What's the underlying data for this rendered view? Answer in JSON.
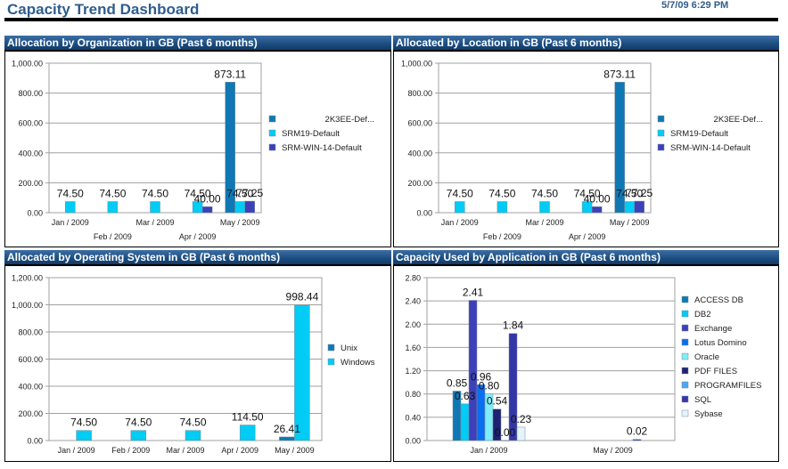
{
  "header": {
    "title": "Capacity Trend Dashboard",
    "datetime": "5/7/09 6:29 PM"
  },
  "chart_data": [
    {
      "id": "org",
      "type": "bar",
      "title": "Allocation by Organization in GB (Past 6 months)",
      "xlabel": "",
      "ylabel": "",
      "ylim": [
        0,
        1000
      ],
      "yticks": [
        "0.00",
        "200.00",
        "400.00",
        "600.00",
        "800.00",
        "1,000.00"
      ],
      "ytick_values": [
        0,
        200,
        400,
        600,
        800,
        1000
      ],
      "categories": [
        "Jan / 2009",
        "Feb / 2009",
        "Mar / 2009",
        "Apr / 2009",
        "May / 2009"
      ],
      "legend_position": "right",
      "grid": true,
      "series": [
        {
          "name": "2K3EE-Def...",
          "color": "#0f78b4",
          "values": [
            null,
            null,
            null,
            null,
            873.11
          ],
          "labels": [
            "",
            "",
            "",
            "",
            "873.11"
          ]
        },
        {
          "name": "SRM19-Default",
          "color": "#00ccf5",
          "values": [
            74.5,
            74.5,
            74.5,
            74.5,
            74.5
          ],
          "labels": [
            "74.50",
            "74.50",
            "74.50",
            "74.50",
            "74.50"
          ]
        },
        {
          "name": "SRM-WIN-14-Default",
          "color": "#3d40b8",
          "values": [
            null,
            null,
            null,
            40.0,
            77.25
          ],
          "labels": [
            "",
            "",
            "",
            "40.00",
            "77.25"
          ]
        }
      ]
    },
    {
      "id": "loc",
      "type": "bar",
      "title": "Allocated by Location in GB (Past 6 months)",
      "xlabel": "",
      "ylabel": "",
      "ylim": [
        0,
        1000
      ],
      "yticks": [
        "0.00",
        "200.00",
        "400.00",
        "600.00",
        "800.00",
        "1,000.00"
      ],
      "ytick_values": [
        0,
        200,
        400,
        600,
        800,
        1000
      ],
      "categories": [
        "Jan / 2009",
        "Feb / 2009",
        "Mar / 2009",
        "Apr / 2009",
        "May / 2009"
      ],
      "legend_position": "right",
      "grid": true,
      "series": [
        {
          "name": "2K3EE-Def...",
          "color": "#0f78b4",
          "values": [
            null,
            null,
            null,
            null,
            873.11
          ],
          "labels": [
            "",
            "",
            "",
            "",
            "873.11"
          ]
        },
        {
          "name": "SRM19-Default",
          "color": "#00ccf5",
          "values": [
            74.5,
            74.5,
            74.5,
            74.5,
            74.5
          ],
          "labels": [
            "74.50",
            "74.50",
            "74.50",
            "74.50",
            "74.50"
          ]
        },
        {
          "name": "SRM-WIN-14-Default",
          "color": "#3d40b8",
          "values": [
            null,
            null,
            null,
            40.0,
            77.25
          ],
          "labels": [
            "",
            "",
            "",
            "40.00",
            "77.25"
          ]
        }
      ]
    },
    {
      "id": "os",
      "type": "bar",
      "title": "Allocated by Operating System in GB (Past 6 months)",
      "xlabel": "",
      "ylabel": "",
      "ylim": [
        0,
        1200
      ],
      "yticks": [
        "0.00",
        "200.00",
        "400.00",
        "600.00",
        "800.00",
        "1,000.00",
        "1,200.00"
      ],
      "ytick_values": [
        0,
        200,
        400,
        600,
        800,
        1000,
        1200
      ],
      "categories": [
        "Jan / 2009",
        "Feb / 2009",
        "Mar / 2009",
        "Apr / 2009",
        "May / 2009"
      ],
      "legend_position": "right",
      "grid": true,
      "series": [
        {
          "name": "Unix",
          "color": "#0f78b4",
          "values": [
            null,
            null,
            null,
            null,
            26.41
          ],
          "labels": [
            "",
            "",
            "",
            "",
            "26.41"
          ]
        },
        {
          "name": "Windows",
          "color": "#00ccf5",
          "values": [
            74.5,
            74.5,
            74.5,
            114.5,
            998.44
          ],
          "labels": [
            "74.50",
            "74.50",
            "74.50",
            "114.50",
            "998.44"
          ]
        }
      ]
    },
    {
      "id": "app",
      "type": "bar",
      "title": "Capacity Used by Application in GB (Past 6 months)",
      "xlabel": "",
      "ylabel": "",
      "ylim": [
        0,
        2.8
      ],
      "yticks": [
        "0.00",
        "0.40",
        "0.80",
        "1.20",
        "1.60",
        "2.00",
        "2.40",
        "2.80"
      ],
      "ytick_values": [
        0,
        0.4,
        0.8,
        1.2,
        1.6,
        2.0,
        2.4,
        2.8
      ],
      "categories": [
        "Jan / 2009",
        "May / 2009"
      ],
      "legend_position": "right",
      "grid": true,
      "series": [
        {
          "name": "ACCESS DB",
          "color": "#0f78b4",
          "values": [
            0.85,
            null
          ],
          "labels": [
            "0.85",
            ""
          ]
        },
        {
          "name": "DB2",
          "color": "#00ccf5",
          "values": [
            0.63,
            null
          ],
          "labels": [
            "0.63",
            ""
          ]
        },
        {
          "name": "Exchange",
          "color": "#3d40b8",
          "values": [
            2.41,
            null
          ],
          "labels": [
            "2.41",
            ""
          ]
        },
        {
          "name": "Lotus Domino",
          "color": "#0a6ef0",
          "values": [
            0.96,
            null
          ],
          "labels": [
            "0.96",
            ""
          ]
        },
        {
          "name": "Oracle",
          "color": "#80ecfa",
          "values": [
            0.8,
            null
          ],
          "labels": [
            "0.80",
            ""
          ]
        },
        {
          "name": "PDF FILES",
          "color": "#1e2270",
          "values": [
            0.54,
            null
          ],
          "labels": [
            "0.54",
            ""
          ]
        },
        {
          "name": "PROGRAMFILES",
          "color": "#4aa8f0",
          "values": [
            0.0,
            null
          ],
          "labels": [
            "0.00",
            ""
          ]
        },
        {
          "name": "SQL",
          "color": "#3436a8",
          "values": [
            1.84,
            0.02
          ],
          "labels": [
            "1.84",
            "0.02"
          ]
        },
        {
          "name": "Sybase",
          "color": "#e4f4fc",
          "values": [
            0.23,
            null
          ],
          "labels": [
            "0.23",
            ""
          ]
        }
      ]
    }
  ]
}
